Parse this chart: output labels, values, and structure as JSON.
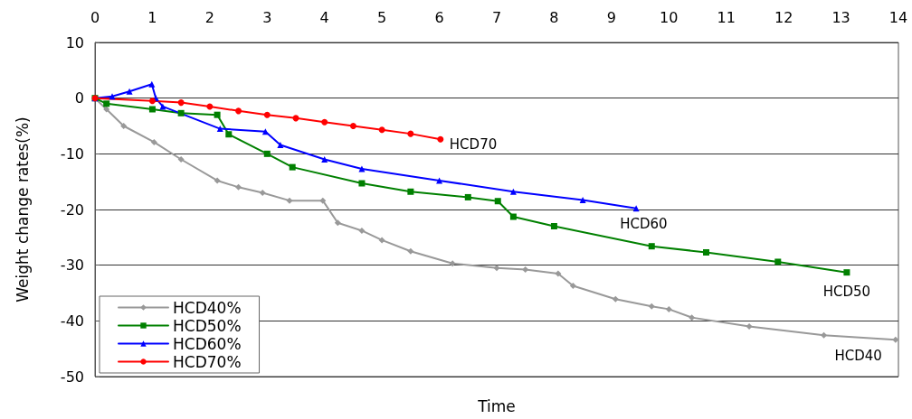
{
  "chart_data": {
    "type": "line",
    "xlabel": "Time",
    "ylabel": "Weight change rates(%)",
    "xlim": [
      0,
      14
    ],
    "xticks": [
      0,
      1,
      2,
      3,
      4,
      5,
      6,
      7,
      8,
      9,
      10,
      11,
      12,
      13,
      14
    ],
    "ylim": [
      -50,
      10
    ],
    "yticks": [
      -50,
      -40,
      -30,
      -20,
      -10,
      0,
      10
    ],
    "grid": "y",
    "legend": "bottom left",
    "series": [
      {
        "name": "HCD40%",
        "color": "#999999",
        "marker": "diamond",
        "x": [
          0,
          0.2,
          0.5,
          1.03,
          1.5,
          2.13,
          2.5,
          2.92,
          3.39,
          3.97,
          4.23,
          4.65,
          5,
          5.5,
          6.23,
          7,
          7.5,
          8.07,
          8.33,
          9.07,
          9.7,
          10.0,
          10.4,
          11.4,
          12.7,
          13.95
        ],
        "values": [
          0,
          -2,
          -5,
          -7.9,
          -11,
          -14.8,
          -16,
          -17,
          -18.4,
          -18.4,
          -22.4,
          -23.8,
          -25.5,
          -27.5,
          -29.7,
          -30.5,
          -30.8,
          -31.5,
          -33.7,
          -36.1,
          -37.4,
          -37.9,
          -39.4,
          -41,
          -42.6,
          -43.4
        ]
      },
      {
        "name": "HCD50%",
        "color": "#008000",
        "marker": "square",
        "x": [
          0,
          0.2,
          1,
          1.5,
          2.13,
          2.33,
          3,
          3.44,
          4.65,
          5.5,
          6.5,
          7.02,
          7.29,
          8,
          9.7,
          10.65,
          11.9,
          13.1
        ],
        "values": [
          0,
          -1,
          -2,
          -2.7,
          -3,
          -6.5,
          -10,
          -12.4,
          -15.3,
          -16.8,
          -17.8,
          -18.5,
          -21.3,
          -23,
          -26.6,
          -27.7,
          -29.4,
          -31.3
        ]
      },
      {
        "name": "HCD60%",
        "color": "#0000ff",
        "marker": "triangle",
        "x": [
          0,
          0.3,
          0.6,
          0.99,
          1.06,
          1.18,
          2.18,
          2.97,
          3.23,
          4.0,
          4.65,
          6,
          7.29,
          8.5,
          9.43
        ],
        "values": [
          0,
          0.3,
          1.2,
          2.5,
          0,
          -1.5,
          -5.5,
          -6,
          -8.4,
          -11,
          -12.7,
          -14.8,
          -16.8,
          -18.3,
          -19.8
        ]
      },
      {
        "name": "HCD70%",
        "color": "#ff0000",
        "marker": "circle",
        "x": [
          0,
          1,
          1.5,
          2,
          2.5,
          3,
          3.5,
          4,
          4.5,
          5,
          5.5,
          6.02
        ],
        "values": [
          0,
          -0.5,
          -0.8,
          -1.5,
          -2.3,
          -3,
          -3.6,
          -4.3,
          -5,
          -5.7,
          -6.4,
          -7.4
        ]
      }
    ],
    "annotations": [
      {
        "text": "HCD70",
        "x": 6.02,
        "y": -7.4
      },
      {
        "text": "HCD60",
        "x": 9.43,
        "y": -19.8
      },
      {
        "text": "HCD50",
        "x": 13.1,
        "y": -31.3
      },
      {
        "text": "HCD40",
        "x": 13.95,
        "y": -43.4
      }
    ]
  }
}
